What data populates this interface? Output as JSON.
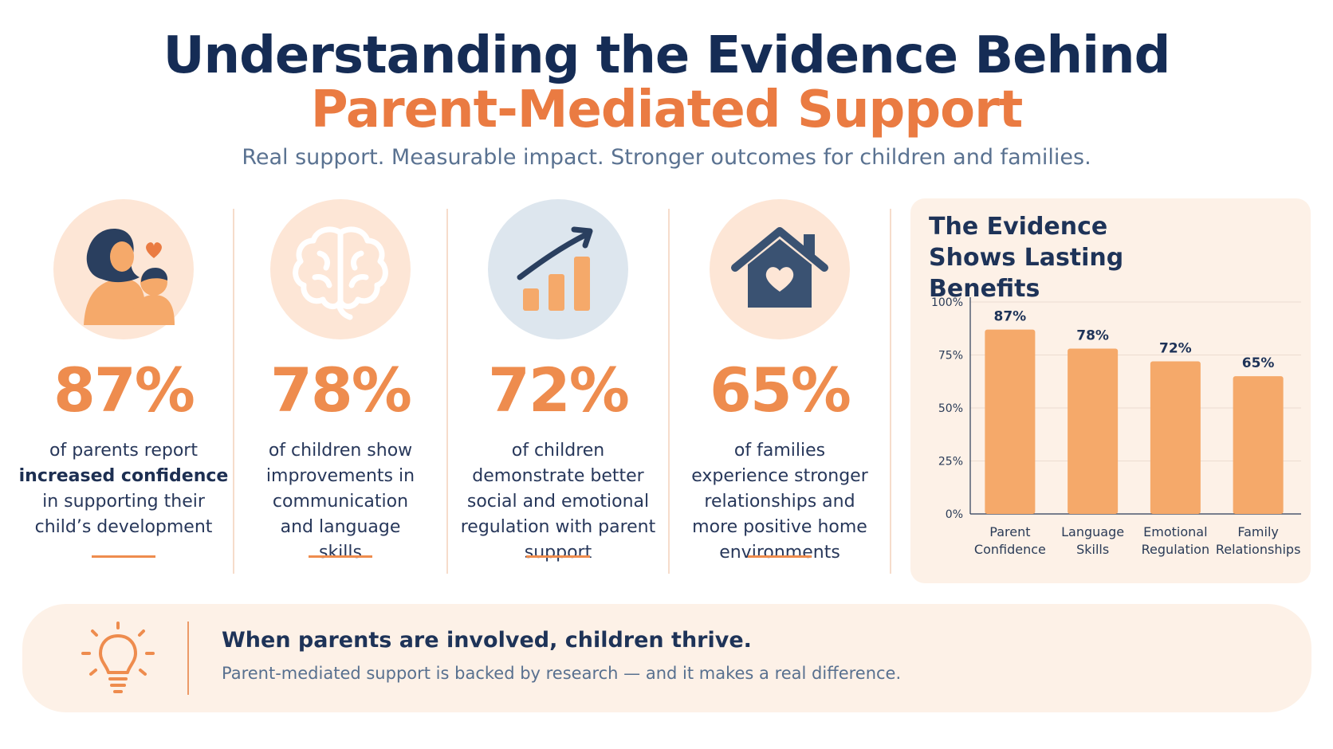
{
  "header": {
    "title_line1": "Understanding the Evidence Behind",
    "title_line2": "Parent-Mediated Support",
    "subtitle": "Real support. Measurable impact. Stronger outcomes for children and families."
  },
  "stats": [
    {
      "value": "87%",
      "icon": "parent-child-heart-icon",
      "text_before": "of parents report",
      "text_bold": "increased confidence",
      "text_after": "in supporting their child’s development"
    },
    {
      "value": "78%",
      "icon": "brain-icon",
      "text_before": "of children show improvements in communication and language skills",
      "text_bold": "",
      "text_after": ""
    },
    {
      "value": "72%",
      "icon": "growth-chart-icon",
      "text_before": "of children demonstrate better social and emotional regulation with parent support",
      "text_bold": "",
      "text_after": ""
    },
    {
      "value": "65%",
      "icon": "house-heart-icon",
      "text_before": "of families experience stronger relationships and more positive home environments",
      "text_bold": "",
      "text_after": ""
    }
  ],
  "chart_data": {
    "type": "bar",
    "title": "The Evidence Shows Lasting Benefits",
    "categories": [
      "Parent Confidence",
      "Language Skills",
      "Emotional Regulation",
      "Family Relationships"
    ],
    "values": [
      87,
      78,
      72,
      65
    ],
    "value_labels": [
      "87%",
      "78%",
      "72%",
      "65%"
    ],
    "ylim": [
      0,
      100
    ],
    "yticks": [
      0,
      25,
      50,
      75,
      100
    ],
    "ytick_labels": [
      "0%",
      "25%",
      "50%",
      "75%",
      "100%"
    ],
    "grid": true,
    "bar_color": "#f5a96a"
  },
  "banner": {
    "icon": "lightbulb-icon",
    "headline": "When parents are involved, children thrive.",
    "subtext": "Parent-mediated support is backed by research — and it makes a real difference."
  },
  "colors": {
    "navy": "#152c55",
    "orange": "#ea7b42",
    "peach_bg": "#fdf1e7",
    "circle_peach": "#fde6d6",
    "circle_blue": "#dde6ee"
  }
}
